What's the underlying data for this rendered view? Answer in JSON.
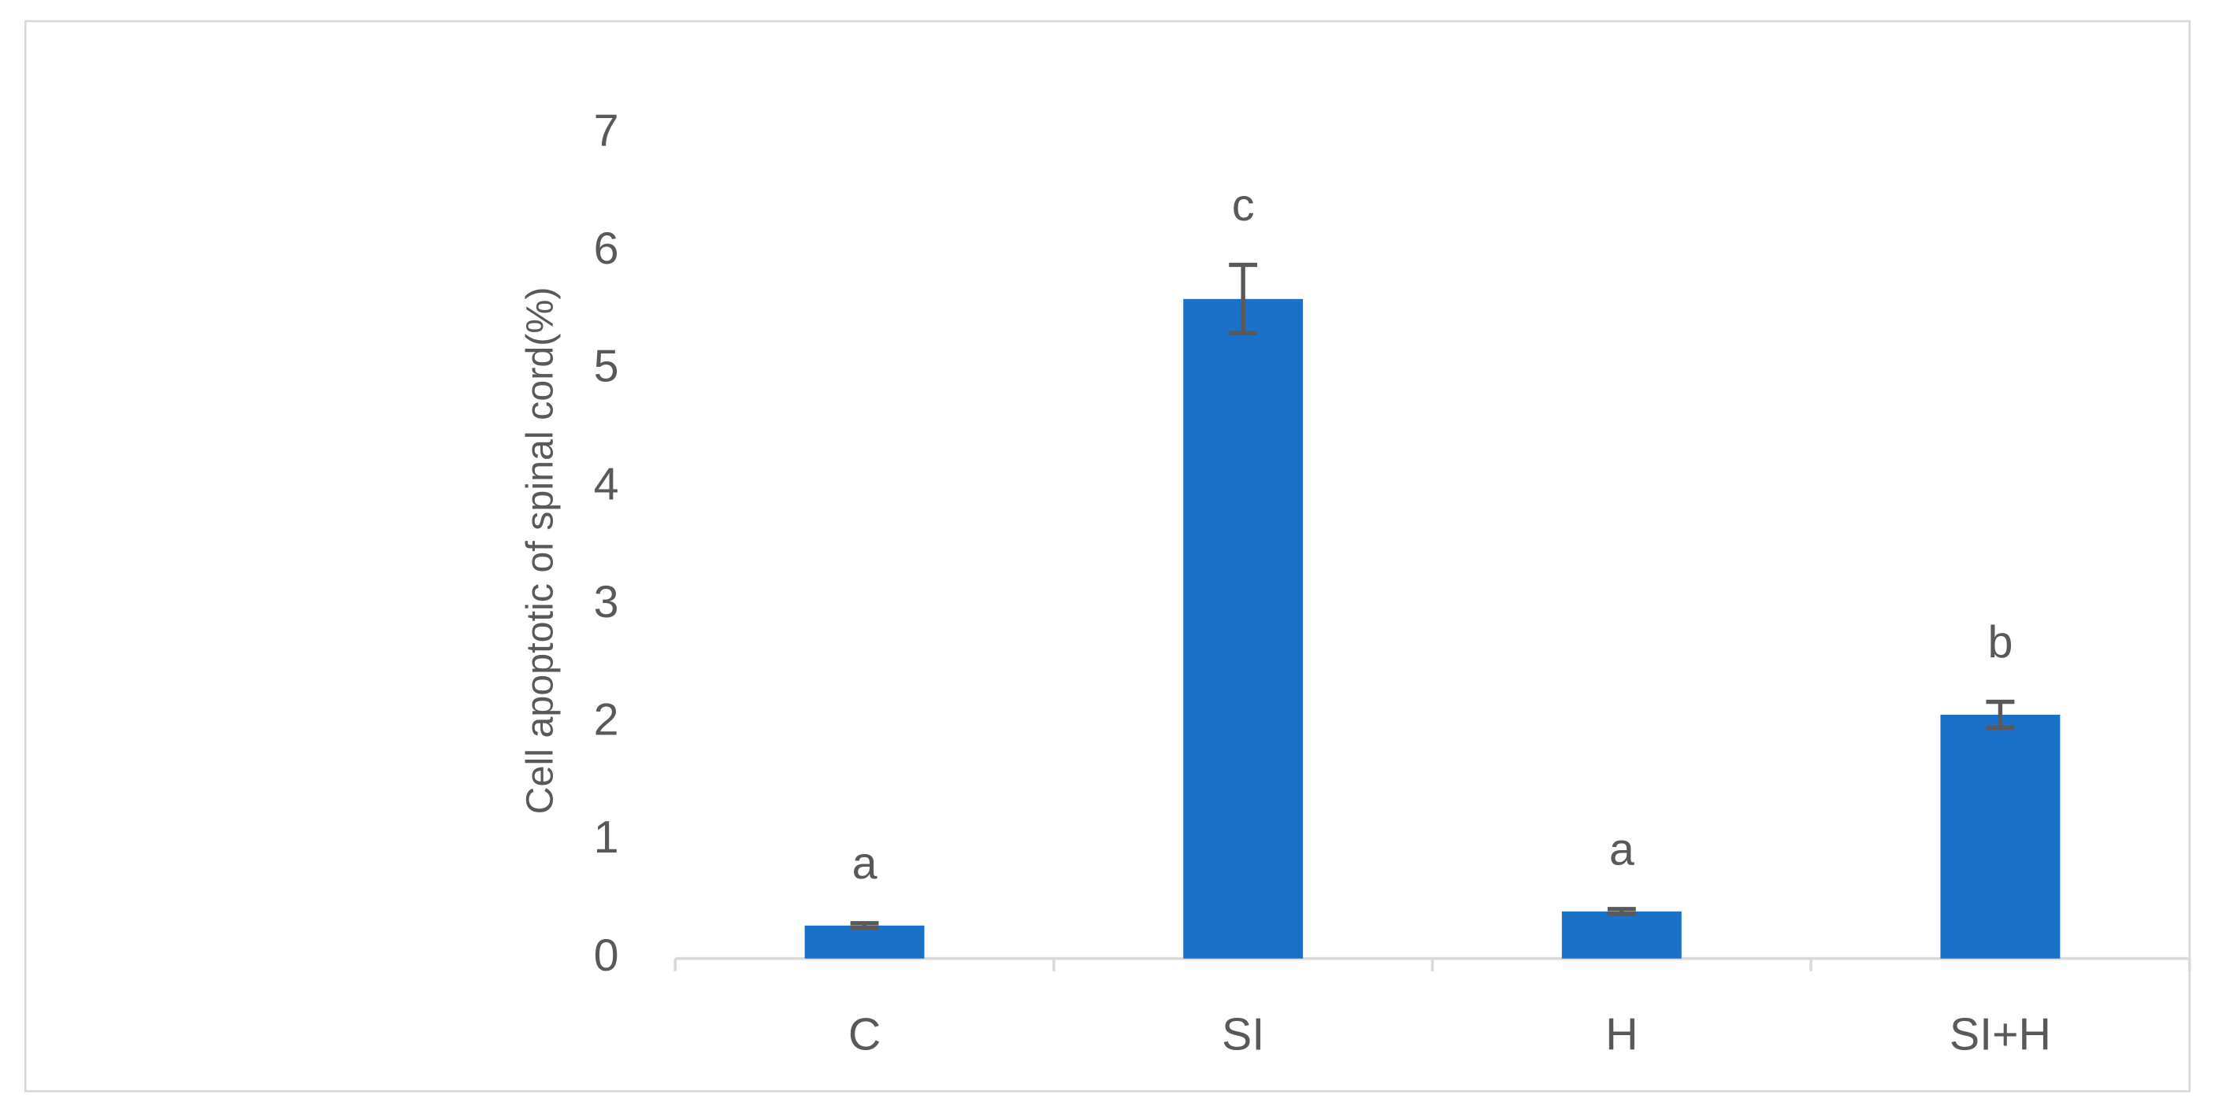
{
  "chart_data": {
    "type": "bar",
    "y_label": "Cell apoptotic of spinal cord(%)",
    "categories": [
      "C",
      "SI",
      "H",
      "SI+H"
    ],
    "values": [
      0.28,
      5.6,
      0.4,
      2.07
    ],
    "errors": [
      0.02,
      0.29,
      0.02,
      0.11
    ],
    "annotations": [
      "a",
      "c",
      "a",
      "b"
    ],
    "color": "#1a71c7",
    "ylim": [
      0,
      7
    ],
    "yticks": [
      0,
      1,
      2,
      3,
      4,
      5,
      6,
      7
    ],
    "grid": false
  }
}
